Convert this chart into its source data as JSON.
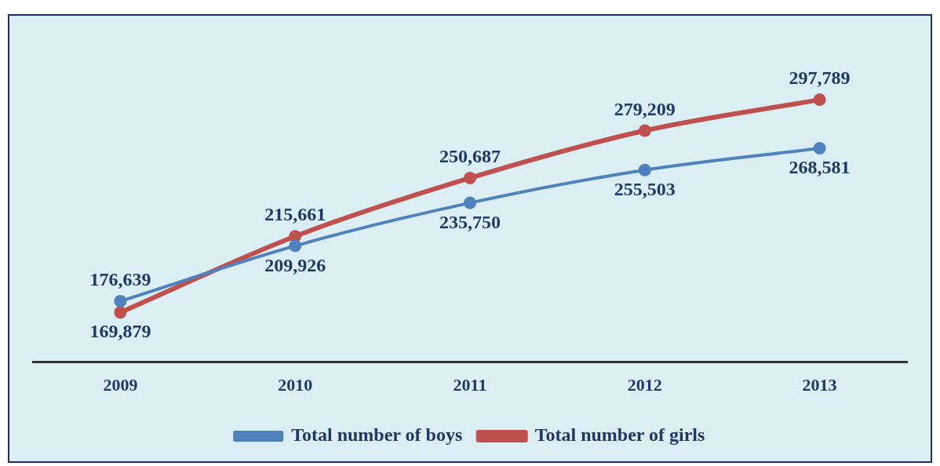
{
  "chart_data": {
    "type": "line",
    "categories": [
      "2009",
      "2010",
      "2011",
      "2012",
      "2013"
    ],
    "series": [
      {
        "name": "Total number of boys",
        "color": "#4f81bd",
        "values": [
          176639,
          209926,
          235750,
          255503,
          268581
        ],
        "value_labels": [
          "176,639",
          "209,926",
          "235,750",
          "255,503",
          "268,581"
        ]
      },
      {
        "name": "Total number of girls",
        "color": "#c0504d",
        "values": [
          169879,
          215661,
          250687,
          279209,
          297789
        ],
        "value_labels": [
          "169,879",
          "215,661",
          "250,687",
          "279,209",
          "297,789"
        ]
      }
    ],
    "legend": "bottom",
    "marker": "circle",
    "tick_labels": "x"
  }
}
